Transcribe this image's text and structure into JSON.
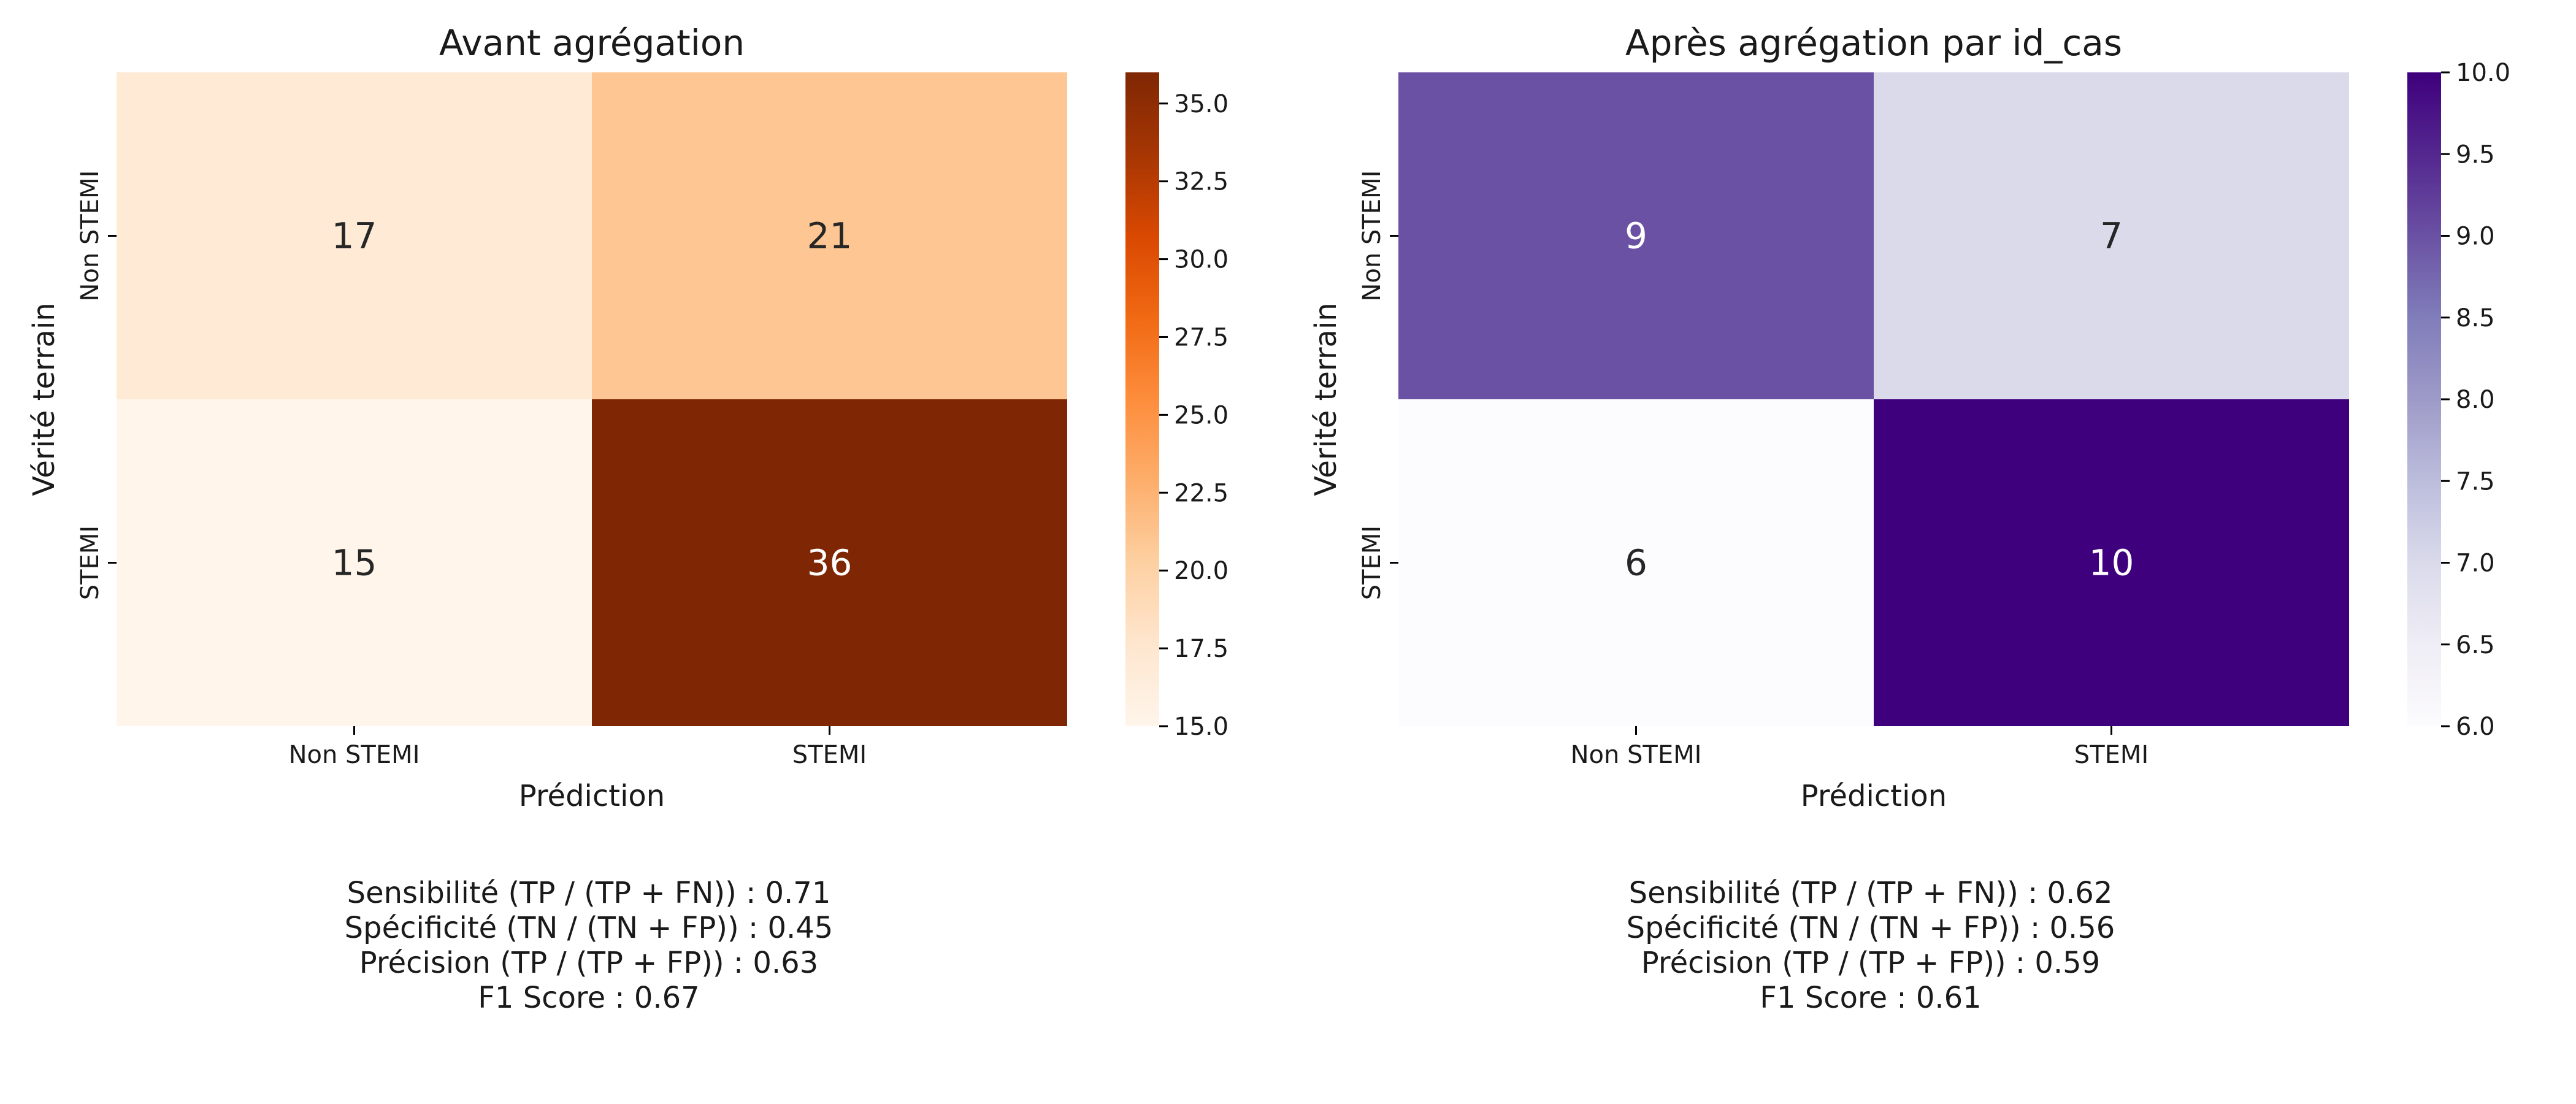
{
  "chart_data": [
    {
      "type": "heatmap",
      "title": "Avant agrégation",
      "xlabel": "Prédiction",
      "ylabel": "Vérité terrain",
      "x_categories": [
        "Non STEMI",
        "STEMI"
      ],
      "y_categories": [
        "Non STEMI",
        "STEMI"
      ],
      "values": [
        [
          17,
          21
        ],
        [
          15,
          36
        ]
      ],
      "colormap": "Oranges",
      "colorbar": {
        "min": 15.0,
        "max": 36.0,
        "ticks": [
          "15.0",
          "17.5",
          "20.0",
          "22.5",
          "25.0",
          "27.5",
          "30.0",
          "32.5",
          "35.0"
        ]
      },
      "metrics": [
        "Sensibilité (TP / (TP + FN)) : 0.71",
        "Spécificité (TN / (TN + FP)) : 0.45",
        "Précision (TP / (TP + FP)) : 0.63",
        "F1 Score : 0.67"
      ]
    },
    {
      "type": "heatmap",
      "title": "Après agrégation par id_cas",
      "xlabel": "Prédiction",
      "ylabel": "Vérité terrain",
      "x_categories": [
        "Non STEMI",
        "STEMI"
      ],
      "y_categories": [
        "Non STEMI",
        "STEMI"
      ],
      "values": [
        [
          9,
          7
        ],
        [
          6,
          10
        ]
      ],
      "colormap": "Purples",
      "colorbar": {
        "min": 6.0,
        "max": 10.0,
        "ticks": [
          "6.0",
          "6.5",
          "7.0",
          "7.5",
          "8.0",
          "8.5",
          "9.0",
          "9.5",
          "10.0"
        ]
      },
      "metrics": [
        "Sensibilité (TP / (TP + FN)) : 0.62",
        "Spécificité (TN / (TN + FP)) : 0.56",
        "Précision (TP / (TP + FP)) : 0.59",
        "F1 Score : 0.61"
      ]
    }
  ],
  "colors": {
    "oranges": [
      "#fff5eb",
      "#fee6ce",
      "#fdd0a2",
      "#fdae6b",
      "#fd8d3c",
      "#f16913",
      "#d94801",
      "#a63603",
      "#7f2704"
    ],
    "purples": [
      "#fcfbfd",
      "#efedf5",
      "#dadaeb",
      "#bcbddc",
      "#9e9ac8",
      "#807dba",
      "#6a51a3",
      "#54278f",
      "#3f007d"
    ],
    "axis": "#000000",
    "text_dark": "#262626",
    "text_light": "#ffffff"
  }
}
